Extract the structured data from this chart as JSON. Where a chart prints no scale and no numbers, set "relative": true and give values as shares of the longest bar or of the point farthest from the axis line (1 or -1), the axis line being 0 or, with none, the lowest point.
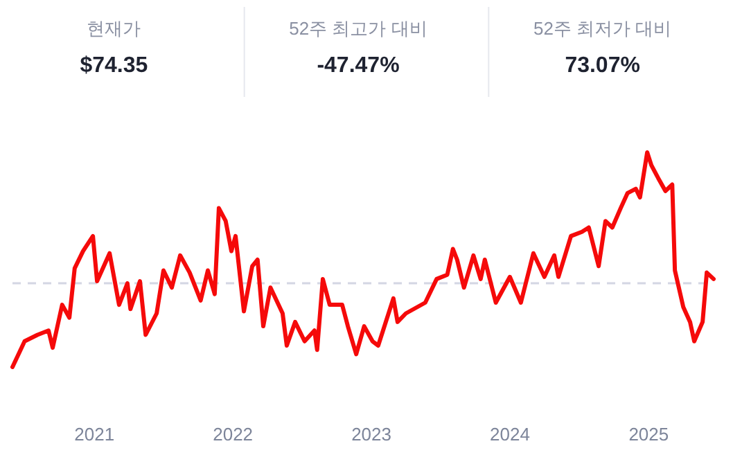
{
  "chart_data": [
    {
      "type": "other",
      "annotations": [
        "현재가",
        "$74.35",
        "52주 최고가 대비",
        "-47.47%",
        "52주 최저가 대비",
        "73.07%"
      ]
    },
    {
      "type": "line",
      "relative": true,
      "x": [
        "2020-05-30",
        "2020-07-01",
        "2020-08-04",
        "2020-09-02",
        "2020-09-13",
        "2020-10-08",
        "2020-10-27",
        "2020-11-10",
        "2020-12-02",
        "2020-12-28",
        "2021-01-08",
        "2021-02-10",
        "2021-03-07",
        "2021-03-29",
        "2021-04-06",
        "2021-05-01",
        "2021-05-16",
        "2021-06-14",
        "2021-07-02",
        "2021-07-24",
        "2021-08-15",
        "2021-09-09",
        "2021-10-08",
        "2021-10-27",
        "2021-11-14",
        "2021-11-25",
        "2021-12-13",
        "2021-12-28",
        "2022-01-08",
        "2022-01-30",
        "2022-02-21",
        "2022-03-07",
        "2022-03-22",
        "2022-04-10",
        "2022-05-12",
        "2022-05-23",
        "2022-06-14",
        "2022-07-09",
        "2022-08-04",
        "2022-08-11",
        "2022-08-26",
        "2022-09-13",
        "2022-10-16",
        "2022-10-31",
        "2022-11-22",
        "2022-12-13",
        "2023-01-04",
        "2023-01-19",
        "2023-02-28",
        "2023-03-11",
        "2023-04-02",
        "2023-05-23",
        "2023-06-22",
        "2023-07-20",
        "2023-08-04",
        "2023-08-15",
        "2023-09-02",
        "2023-09-27",
        "2023-10-16",
        "2023-10-27",
        "2023-11-25",
        "2024-01-01",
        "2024-01-30",
        "2024-03-03",
        "2024-04-01",
        "2024-04-27",
        "2024-05-08",
        "2024-06-10",
        "2024-07-09",
        "2024-07-27",
        "2024-08-22",
        "2024-09-09",
        "2024-09-27",
        "2024-10-19",
        "2024-11-06",
        "2024-11-28",
        "2024-12-09",
        "2024-12-28",
        "2025-01-08",
        "2025-01-26",
        "2025-02-14",
        "2025-03-04",
        "2025-03-11",
        "2025-04-02",
        "2025-04-20",
        "2025-05-01",
        "2025-05-23",
        "2025-06-03",
        "2025-06-21"
      ],
      "series": [
        {
          "color": "#f50a0a",
          "values": [
            0,
            0.12,
            0.15,
            0.17,
            0.09,
            0.29,
            0.23,
            0.46,
            0.54,
            0.61,
            0.4,
            0.53,
            0.29,
            0.39,
            0.27,
            0.4,
            0.15,
            0.25,
            0.45,
            0.37,
            0.52,
            0.44,
            0.31,
            0.45,
            0.34,
            0.74,
            0.68,
            0.54,
            0.61,
            0.26,
            0.47,
            0.5,
            0.19,
            0.37,
            0.25,
            0.1,
            0.21,
            0.12,
            0.17,
            0.08,
            0.41,
            0.29,
            0.29,
            0.19,
            0.06,
            0.19,
            0.12,
            0.1,
            0.32,
            0.21,
            0.25,
            0.3,
            0.41,
            0.43,
            0.55,
            0.5,
            0.37,
            0.52,
            0.41,
            0.5,
            0.3,
            0.42,
            0.3,
            0.53,
            0.42,
            0.52,
            0.42,
            0.61,
            0.63,
            0.65,
            0.47,
            0.68,
            0.65,
            0.74,
            0.81,
            0.83,
            0.79,
            1,
            0.94,
            0.88,
            0.82,
            0.85,
            0.45,
            0.28,
            0.21,
            0.12,
            0.21,
            0.44,
            0.41
          ]
        }
      ],
      "xlim": [
        "2020-05-30",
        "2025-06-21"
      ],
      "xticks": [
        "2021",
        "2022",
        "2023",
        "2024",
        "2025"
      ],
      "ref_lines": [
        {
          "axis": "y",
          "value": 0.39,
          "color": "#d3d6e3",
          "line_style": "dashed"
        }
      ]
    }
  ]
}
